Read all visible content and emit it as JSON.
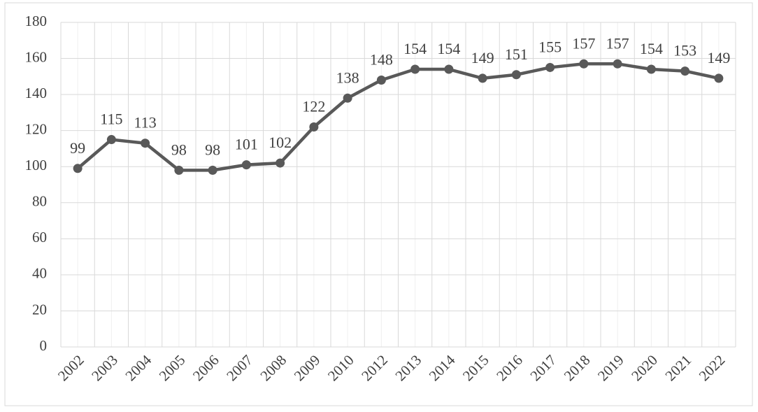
{
  "chart_data": {
    "type": "line",
    "categories": [
      "2002",
      "2003",
      "2004",
      "2005",
      "2006",
      "2007",
      "2008",
      "2009",
      "2010",
      "2012",
      "2013",
      "2014",
      "2015",
      "2016",
      "2017",
      "2018",
      "2019",
      "2020",
      "2021",
      "2022"
    ],
    "series": [
      {
        "color": "#595959",
        "values": [
          99,
          115,
          113,
          98,
          98,
          101,
          102,
          122,
          138,
          148,
          154,
          154,
          149,
          151,
          155,
          157,
          157,
          154,
          153,
          149
        ]
      }
    ],
    "ylim": [
      0,
      180
    ],
    "yticks": [
      0,
      20,
      40,
      60,
      80,
      100,
      120,
      140,
      160,
      180
    ],
    "grid": true,
    "data_labels": true
  }
}
